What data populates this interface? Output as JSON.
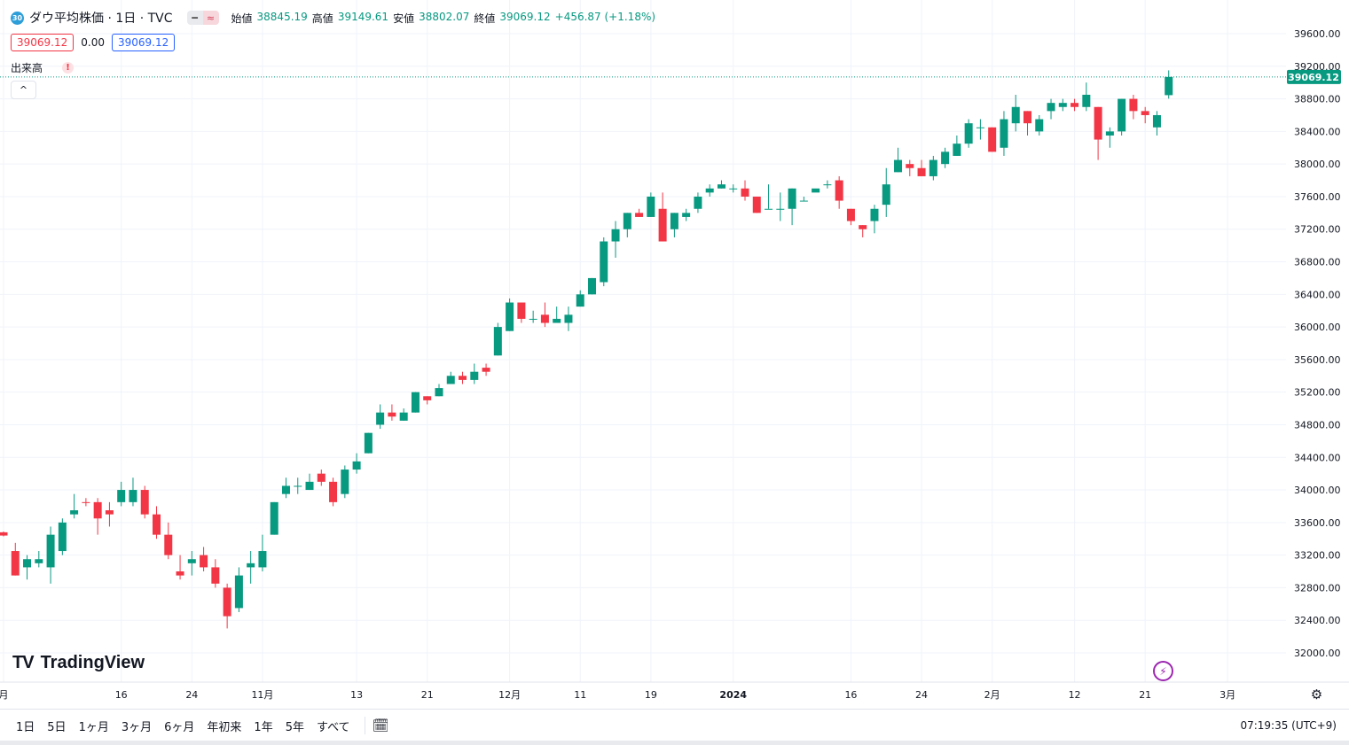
{
  "header": {
    "badge": "30",
    "symbol": "ダウ平均株価 · 1日 · TVC",
    "o_label": "始値",
    "o_val": "38845.19",
    "h_label": "高値",
    "h_val": "39149.61",
    "l_label": "安値",
    "l_val": "38802.07",
    "c_label": "終値",
    "c_val": "39069.12",
    "change": "+456.87 (+1.18%)"
  },
  "quote": {
    "bid": "39069.12",
    "spread": "0.00",
    "ask": "39069.12"
  },
  "volume_label": "出来高",
  "warn_icon": "!",
  "collapse_icon": "^",
  "logo": {
    "mark": "TV",
    "text": "TradingView"
  },
  "price_label": "39069.12",
  "footer": {
    "ranges": [
      "1日",
      "5日",
      "1ヶ月",
      "3ヶ月",
      "6ヶ月",
      "年初来",
      "1年",
      "5年",
      "すべて"
    ],
    "clock": "07:19:35 (UTC+9)"
  },
  "colors": {
    "up": "#089981",
    "down": "#f23645",
    "last_price": "#089981",
    "grid": "#f0f3fa"
  },
  "chart_data": {
    "type": "candlestick",
    "ylim": [
      31700,
      39900
    ],
    "yticks": [
      32000,
      32400,
      32800,
      33200,
      33600,
      34000,
      34400,
      34800,
      35200,
      35600,
      36000,
      36400,
      36800,
      37200,
      37600,
      38000,
      38400,
      38800,
      39200,
      39600
    ],
    "x_tick_labels": [
      {
        "label": "月",
        "i": 0
      },
      {
        "label": "16",
        "i": 10
      },
      {
        "label": "24",
        "i": 16
      },
      {
        "label": "11月",
        "i": 22
      },
      {
        "label": "13",
        "i": 30
      },
      {
        "label": "21",
        "i": 36
      },
      {
        "label": "12月",
        "i": 43
      },
      {
        "label": "11",
        "i": 49
      },
      {
        "label": "19",
        "i": 55
      },
      {
        "label": "2024",
        "i": 62
      },
      {
        "label": "16",
        "i": 72
      },
      {
        "label": "24",
        "i": 78
      },
      {
        "label": "2月",
        "i": 84
      },
      {
        "label": "12",
        "i": 91
      },
      {
        "label": "21",
        "i": 97
      },
      {
        "label": "3月",
        "i": 104
      }
    ],
    "last_price": 39069.12,
    "candles": [
      [
        33480,
        33490,
        33430,
        33440
      ],
      [
        33250,
        33350,
        32950,
        32950
      ],
      [
        33050,
        33200,
        32900,
        33150
      ],
      [
        33100,
        33250,
        33050,
        33150
      ],
      [
        33050,
        33550,
        32850,
        33450
      ],
      [
        33250,
        33650,
        33200,
        33600
      ],
      [
        33700,
        33950,
        33650,
        33750
      ],
      [
        33850,
        33900,
        33800,
        33840
      ],
      [
        33850,
        33900,
        33450,
        33650
      ],
      [
        33750,
        33850,
        33550,
        33700
      ],
      [
        33850,
        34100,
        33800,
        34000
      ],
      [
        33850,
        34150,
        33800,
        34000
      ],
      [
        34000,
        34050,
        33650,
        33700
      ],
      [
        33700,
        33800,
        33400,
        33450
      ],
      [
        33450,
        33600,
        33150,
        33200
      ],
      [
        33000,
        33200,
        32900,
        32950
      ],
      [
        33100,
        33250,
        32950,
        33150
      ],
      [
        33200,
        33300,
        33000,
        33050
      ],
      [
        33050,
        33150,
        32800,
        32850
      ],
      [
        32800,
        32850,
        32300,
        32450
      ],
      [
        32550,
        33050,
        32500,
        32950
      ],
      [
        33050,
        33250,
        32850,
        33100
      ],
      [
        33050,
        33450,
        33000,
        33250
      ],
      [
        33450,
        33850,
        33450,
        33850
      ],
      [
        33950,
        34150,
        33900,
        34050
      ],
      [
        34050,
        34150,
        33950,
        34050
      ],
      [
        34000,
        34200,
        34000,
        34100
      ],
      [
        34200,
        34250,
        34050,
        34100
      ],
      [
        34100,
        34150,
        33800,
        33850
      ],
      [
        33950,
        34300,
        33900,
        34250
      ],
      [
        34250,
        34450,
        34200,
        34350
      ],
      [
        34450,
        34700,
        34450,
        34700
      ],
      [
        34800,
        35050,
        34750,
        34950
      ],
      [
        34950,
        35050,
        34850,
        34900
      ],
      [
        34850,
        35000,
        34850,
        34950
      ],
      [
        34950,
        35200,
        34950,
        35200
      ],
      [
        35150,
        35150,
        35050,
        35100
      ],
      [
        35150,
        35300,
        35150,
        35250
      ],
      [
        35300,
        35450,
        35300,
        35400
      ],
      [
        35400,
        35450,
        35300,
        35350
      ],
      [
        35350,
        35550,
        35300,
        35450
      ],
      [
        35500,
        35550,
        35400,
        35450
      ],
      [
        35650,
        36050,
        35650,
        36000
      ],
      [
        35950,
        36350,
        35950,
        36300
      ],
      [
        36300,
        36300,
        36050,
        36100
      ],
      [
        36100,
        36200,
        36050,
        36100
      ],
      [
        36150,
        36300,
        36000,
        36050
      ],
      [
        36050,
        36250,
        36050,
        36100
      ],
      [
        36050,
        36250,
        35950,
        36150
      ],
      [
        36250,
        36450,
        36250,
        36400
      ],
      [
        36400,
        36600,
        36400,
        36600
      ],
      [
        36550,
        37100,
        36500,
        37050
      ],
      [
        37050,
        37300,
        36850,
        37200
      ],
      [
        37200,
        37400,
        37100,
        37400
      ],
      [
        37400,
        37450,
        37350,
        37350
      ],
      [
        37350,
        37650,
        37350,
        37600
      ],
      [
        37450,
        37650,
        37050,
        37050
      ],
      [
        37200,
        37400,
        37100,
        37400
      ],
      [
        37350,
        37450,
        37300,
        37400
      ],
      [
        37450,
        37650,
        37400,
        37600
      ],
      [
        37650,
        37750,
        37600,
        37700
      ],
      [
        37700,
        37800,
        37700,
        37750
      ],
      [
        37700,
        37750,
        37650,
        37700
      ],
      [
        37700,
        37800,
        37550,
        37600
      ],
      [
        37600,
        37600,
        37400,
        37400
      ],
      [
        37450,
        37750,
        37450,
        37450
      ],
      [
        37450,
        37650,
        37300,
        37450
      ],
      [
        37450,
        37700,
        37250,
        37700
      ],
      [
        37550,
        37600,
        37550,
        37550
      ],
      [
        37650,
        37650,
        37650,
        37700
      ],
      [
        37750,
        37800,
        37700,
        37750
      ],
      [
        37800,
        37850,
        37450,
        37550
      ],
      [
        37450,
        37450,
        37250,
        37300
      ],
      [
        37250,
        37250,
        37100,
        37200
      ],
      [
        37300,
        37500,
        37150,
        37450
      ],
      [
        37500,
        37950,
        37350,
        37750
      ],
      [
        37900,
        38200,
        37900,
        38050
      ],
      [
        38000,
        38050,
        37850,
        37950
      ],
      [
        37950,
        38050,
        37850,
        37850
      ],
      [
        37850,
        38100,
        37800,
        38050
      ],
      [
        38000,
        38200,
        37950,
        38150
      ],
      [
        38100,
        38350,
        38100,
        38250
      ],
      [
        38250,
        38550,
        38200,
        38500
      ],
      [
        38450,
        38550,
        38300,
        38450
      ],
      [
        38450,
        38450,
        38150,
        38150
      ],
      [
        38200,
        38650,
        38100,
        38550
      ],
      [
        38500,
        38850,
        38400,
        38700
      ],
      [
        38650,
        38650,
        38350,
        38500
      ],
      [
        38400,
        38600,
        38350,
        38550
      ],
      [
        38650,
        38800,
        38550,
        38750
      ],
      [
        38700,
        38800,
        38650,
        38750
      ],
      [
        38750,
        38800,
        38650,
        38700
      ],
      [
        38700,
        39000,
        38650,
        38850
      ],
      [
        38700,
        38700,
        38050,
        38300
      ],
      [
        38350,
        38450,
        38200,
        38400
      ],
      [
        38400,
        38800,
        38350,
        38800
      ],
      [
        38800,
        38850,
        38550,
        38650
      ],
      [
        38650,
        38700,
        38500,
        38600
      ],
      [
        38450,
        38650,
        38350,
        38600
      ],
      [
        38845.19,
        39149.61,
        38802.07,
        39069.12
      ]
    ]
  }
}
